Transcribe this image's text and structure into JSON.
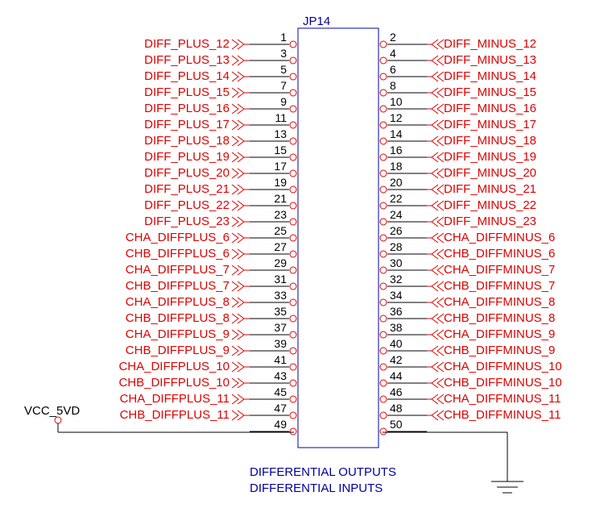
{
  "connector": {
    "ref": "JP14",
    "left_pins": [
      "1",
      "3",
      "5",
      "7",
      "9",
      "11",
      "13",
      "15",
      "17",
      "19",
      "21",
      "23",
      "25",
      "27",
      "29",
      "31",
      "33",
      "35",
      "37",
      "39",
      "41",
      "43",
      "45",
      "47",
      "49"
    ],
    "right_pins": [
      "2",
      "4",
      "6",
      "8",
      "10",
      "12",
      "14",
      "16",
      "18",
      "20",
      "22",
      "24",
      "26",
      "28",
      "30",
      "32",
      "34",
      "36",
      "38",
      "40",
      "42",
      "44",
      "46",
      "48",
      "50"
    ]
  },
  "left_nets": [
    "DIFF_PLUS_12",
    "DIFF_PLUS_13",
    "DIFF_PLUS_14",
    "DIFF_PLUS_15",
    "DIFF_PLUS_16",
    "DIFF_PLUS_17",
    "DIFF_PLUS_18",
    "DIFF_PLUS_19",
    "DIFF_PLUS_20",
    "DIFF_PLUS_21",
    "DIFF_PLUS_22",
    "DIFF_PLUS_23",
    "CHA_DIFFPLUS_6",
    "CHB_DIFFPLUS_6",
    "CHA_DIFFPLUS_7",
    "CHB_DIFFPLUS_7",
    "CHA_DIFFPLUS_8",
    "CHB_DIFFPLUS_8",
    "CHA_DIFFPLUS_9",
    "CHB_DIFFPLUS_9",
    "CHA_DIFFPLUS_10",
    "CHB_DIFFPLUS_10",
    "CHA_DIFFPLUS_11",
    "CHB_DIFFPLUS_11"
  ],
  "right_nets": [
    "DIFF_MINUS_12",
    "DIFF_MINUS_13",
    "DIFF_MINUS_14",
    "DIFF_MINUS_15",
    "DIFF_MINUS_16",
    "DIFF_MINUS_17",
    "DIFF_MINUS_18",
    "DIFF_MINUS_19",
    "DIFF_MINUS_20",
    "DIFF_MINUS_21",
    "DIFF_MINUS_22",
    "DIFF_MINUS_23",
    "CHA_DIFFMINUS_6",
    "CHB_DIFFMINUS_6",
    "CHA_DIFFMINUS_7",
    "CHB_DIFFMINUS_7",
    "CHA_DIFFMINUS_8",
    "CHB_DIFFMINUS_8",
    "CHA_DIFFMINUS_9",
    "CHB_DIFFMINUS_9",
    "CHA_DIFFMINUS_10",
    "CHB_DIFFMINUS_10",
    "CHA_DIFFMINUS_11",
    "CHB_DIFFMINUS_11"
  ],
  "power": {
    "label": "VCC_5VD"
  },
  "notes": [
    "DIFFERENTIAL OUTPUTS",
    "DIFFERENTIAL INPUTS"
  ],
  "colors": {
    "net": "#dd0000",
    "line": "#000000",
    "body": "#0000aa",
    "note": "#000099"
  }
}
